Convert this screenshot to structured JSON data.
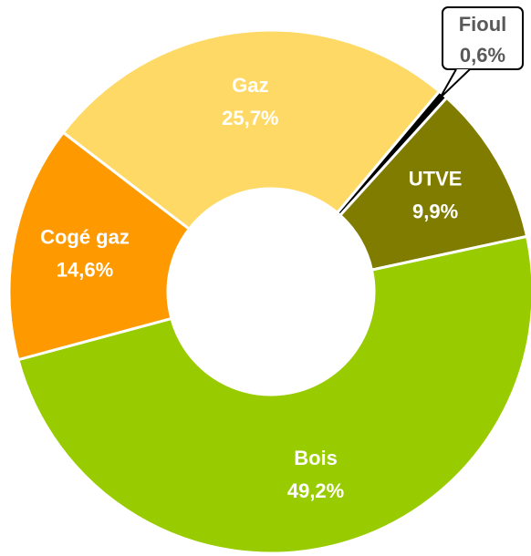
{
  "chart_data": {
    "type": "donut",
    "categories": [
      "Fioul",
      "UTVE",
      "Bois",
      "Cogé gaz",
      "Gaz"
    ],
    "values": [
      0.6,
      9.9,
      49.2,
      14.6,
      25.7
    ],
    "value_labels": [
      "0,6%",
      "9,9%",
      "49,2%",
      "14,6%",
      "25,7%"
    ],
    "colors": [
      "#000000",
      "#807c00",
      "#99cc00",
      "#ff9900",
      "#ffd966"
    ]
  }
}
